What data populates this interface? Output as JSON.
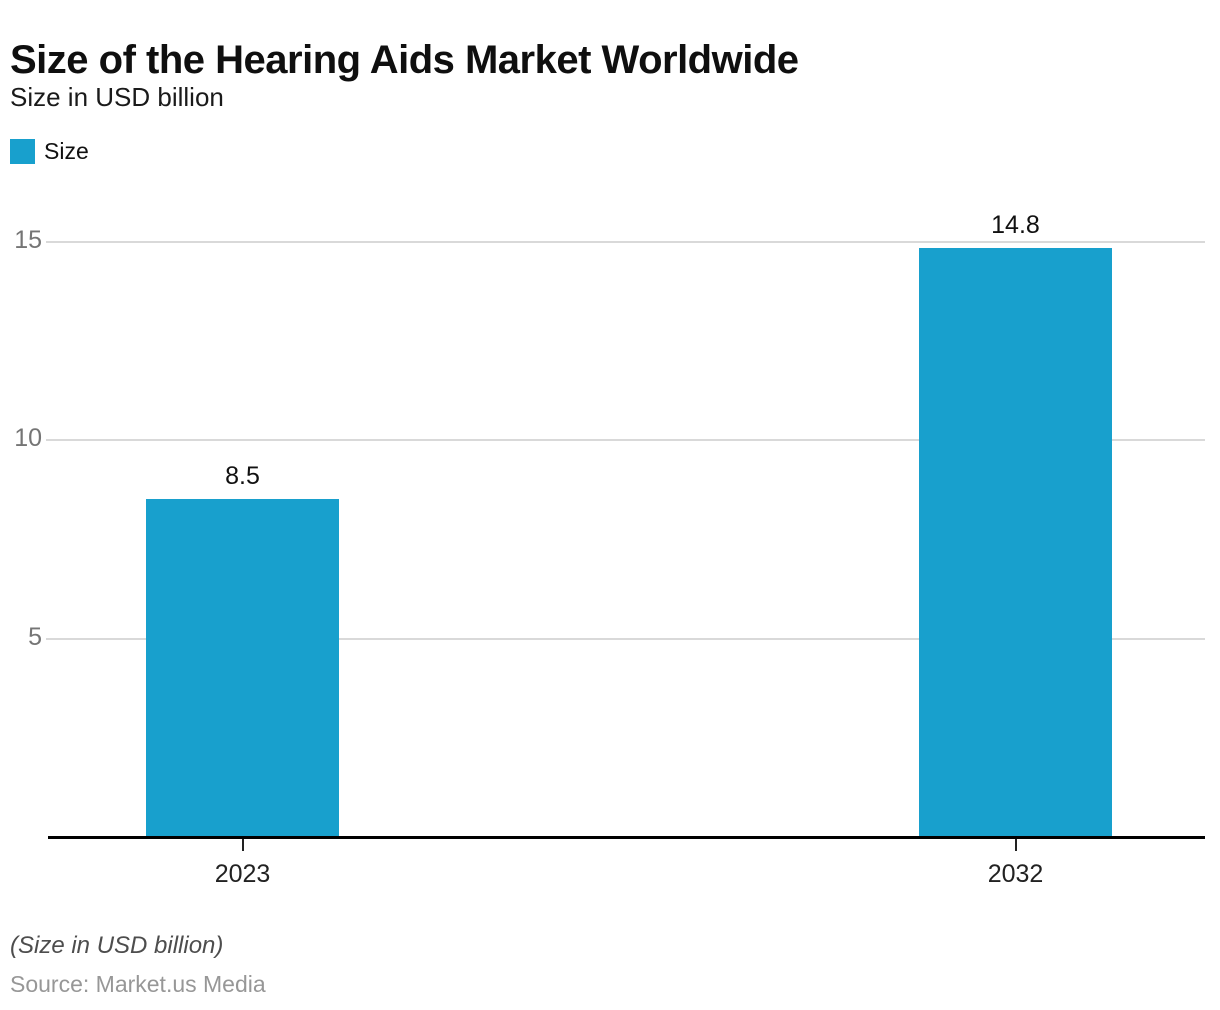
{
  "header": {
    "title": "Size of the Hearing Aids Market Worldwide",
    "subtitle": "Size in USD billion"
  },
  "legend": {
    "items": [
      {
        "label": "Size",
        "color": "#18a0cd"
      }
    ]
  },
  "footer": {
    "note": "(Size in USD billion)",
    "source": "Source: Market.us Media"
  },
  "colors": {
    "bar": "#18a0cd",
    "gridline": "#d9d9d9",
    "axis": "#000000",
    "ytick_text": "#757575",
    "xtick_text": "#222222"
  },
  "chart_data": {
    "type": "bar",
    "title": "Size of the Hearing Aids Market Worldwide",
    "subtitle": "Size in USD billion",
    "categories": [
      "2023",
      "2032"
    ],
    "series": [
      {
        "name": "Size",
        "values": [
          8.5,
          14.8
        ]
      }
    ],
    "value_labels": [
      "8.5",
      "14.8"
    ],
    "xlabel": "",
    "ylabel": "",
    "ylim": [
      0,
      15
    ],
    "yticks": [
      5,
      10,
      15
    ],
    "grid": true,
    "legend_position": "top-left",
    "bar_color": "#18a0cd",
    "footnote": "(Size in USD billion)",
    "source": "Source: Market.us Media"
  }
}
